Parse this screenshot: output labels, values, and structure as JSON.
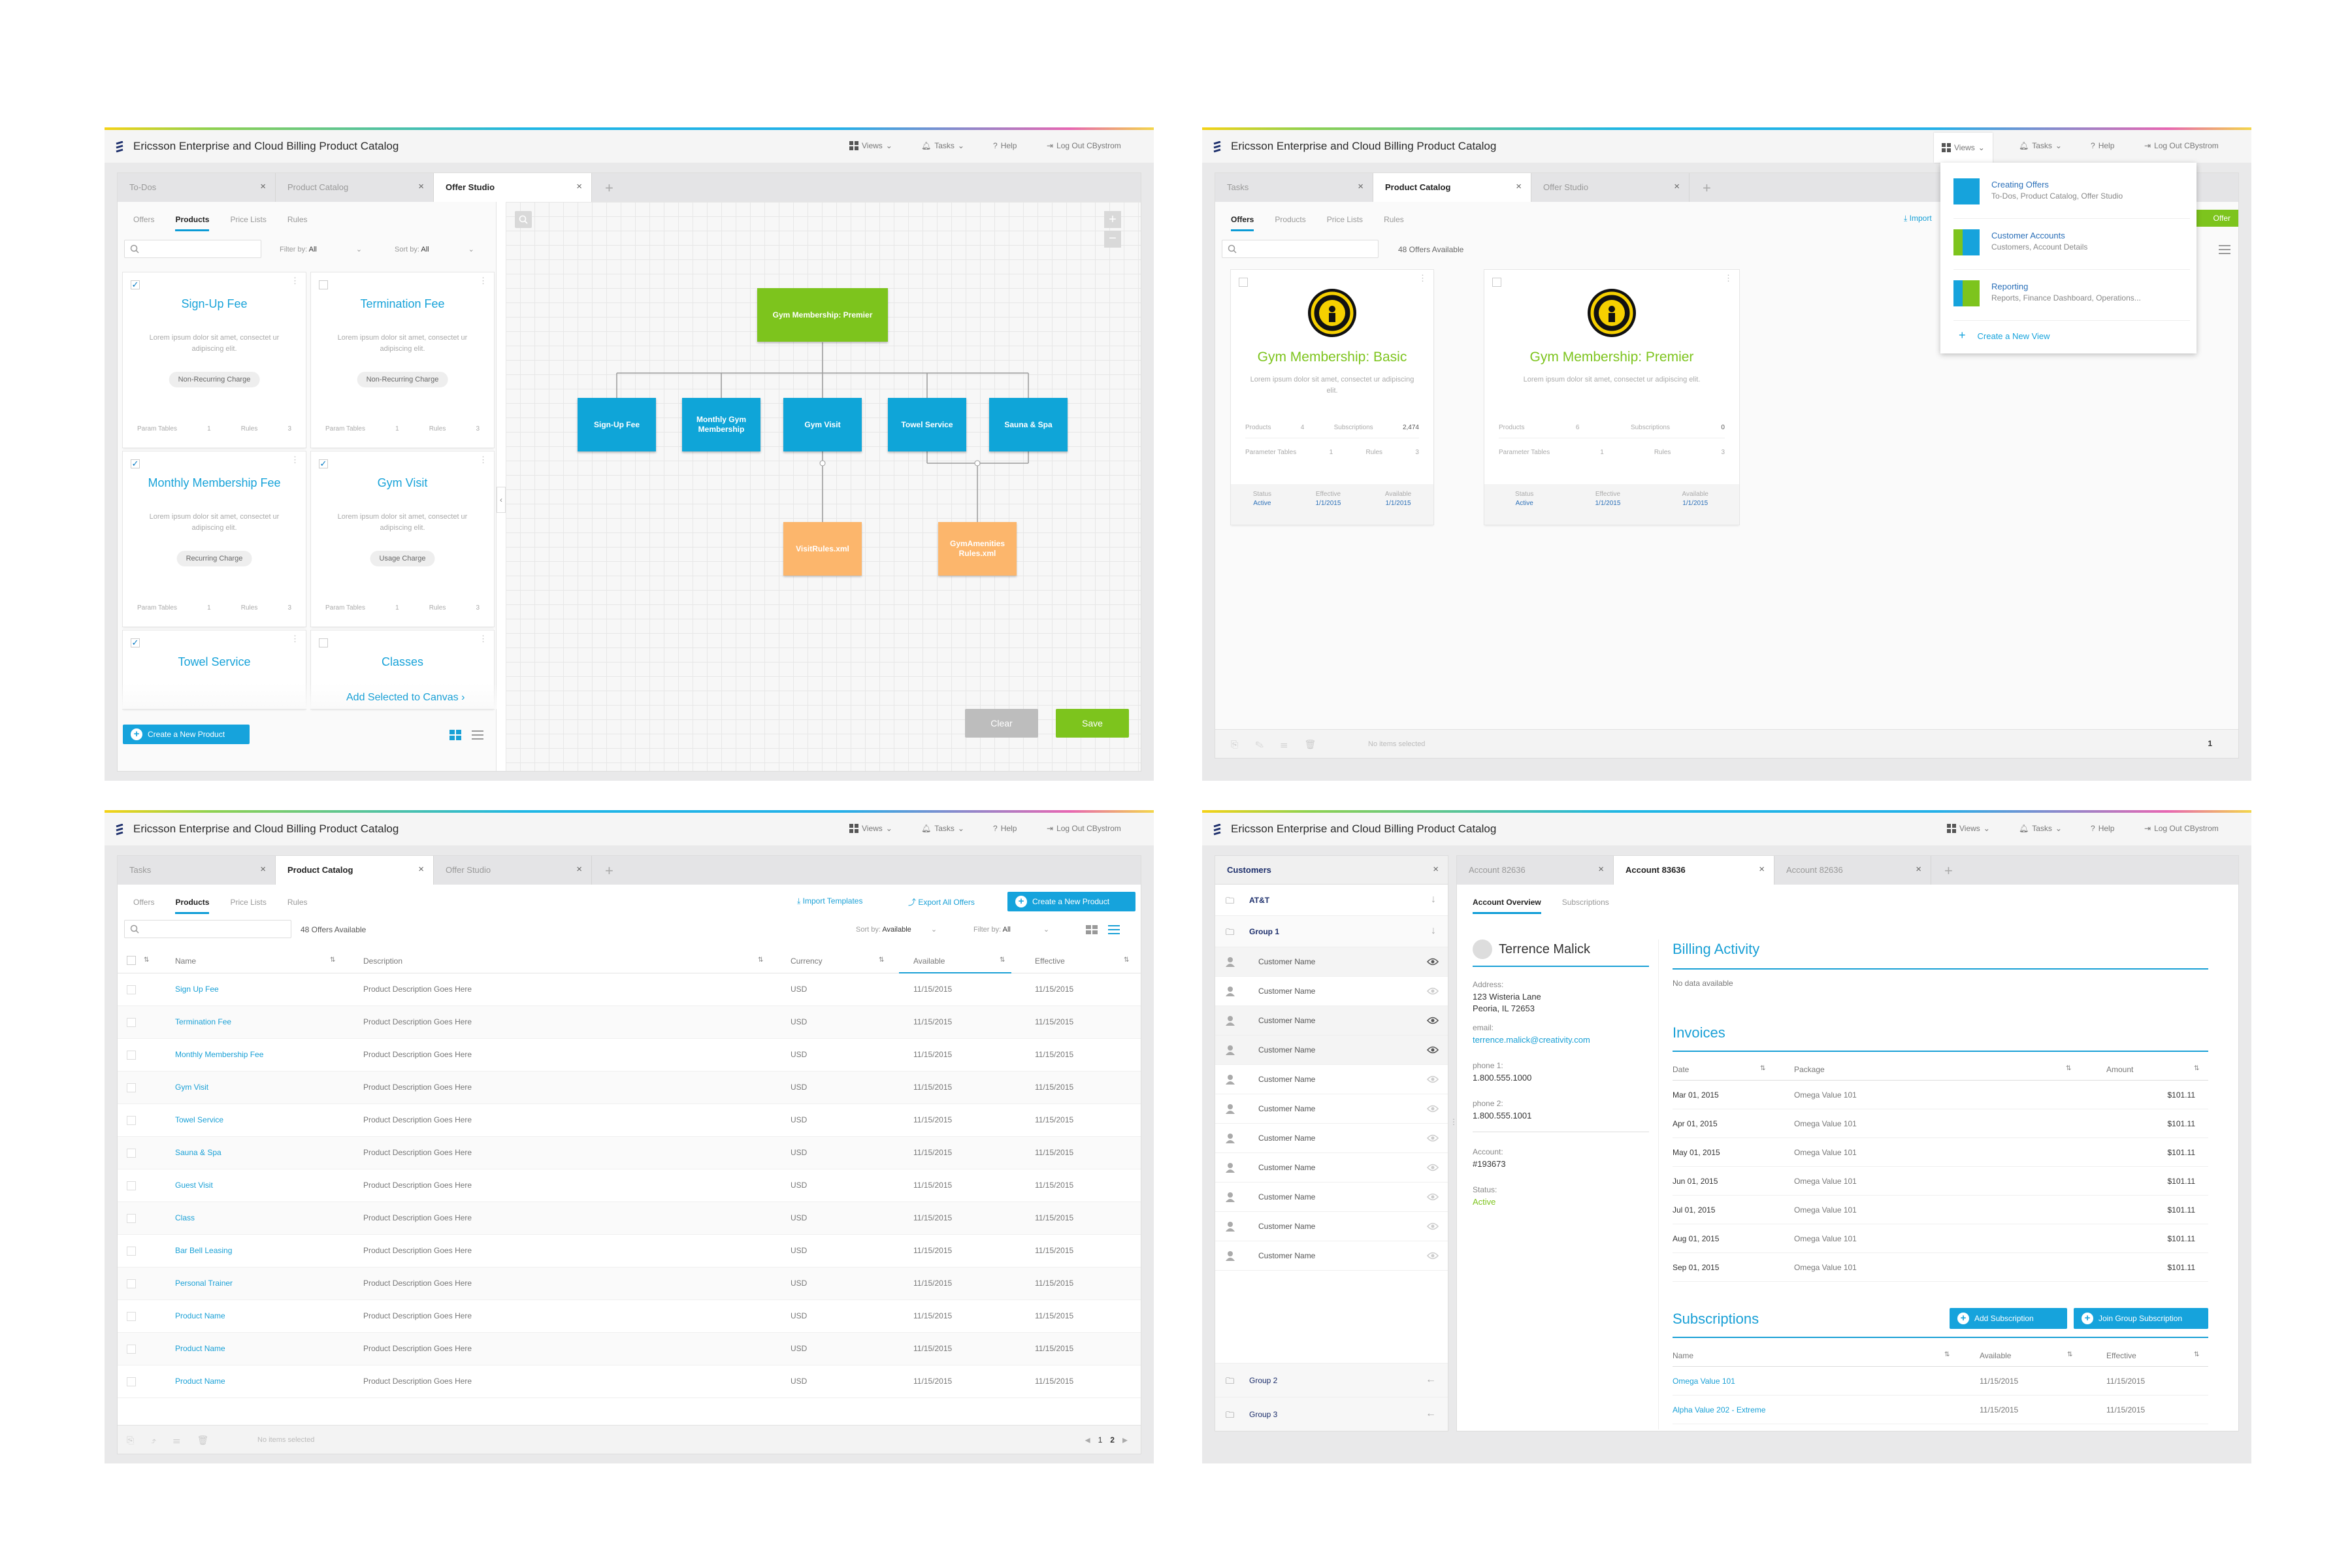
{
  "app": {
    "title": "Ericsson Enterprise and Cloud Billing Product Catalog",
    "views": "Views",
    "tasks": "Tasks",
    "help": "Help",
    "logout": "Log Out CBystrom"
  },
  "colors": {
    "accent": "#16a3dc",
    "green": "#7dc41d",
    "orange": "#fcb66c"
  },
  "w1": {
    "tabs": [
      {
        "label": "To-Dos"
      },
      {
        "label": "Product Catalog"
      },
      {
        "label": "Offer Studio"
      }
    ],
    "subnav": [
      "Offers",
      "Products",
      "Price Lists",
      "Rules"
    ],
    "filter_label": "Filter by:",
    "filter_value": "All",
    "sort_label": "Sort by:",
    "sort_value": "All",
    "cards": [
      {
        "title": "Sign-Up Fee",
        "checked": "✓",
        "desc": "Lorem ipsum dolor sit amet, consectet ur adipiscing elit.",
        "pill": "Non-Recurring Charge",
        "pt_label": "Param Tables",
        "pt": "1",
        "rules_label": "Rules",
        "rules": "3"
      },
      {
        "title": "Termination Fee",
        "checked": "",
        "desc": "Lorem ipsum dolor sit amet, consectet ur adipiscing elit.",
        "pill": "Non-Recurring Charge",
        "pt_label": "Param Tables",
        "pt": "1",
        "rules_label": "Rules",
        "rules": "3"
      },
      {
        "title": "Monthly Membership Fee",
        "checked": "✓",
        "desc": "Lorem ipsum dolor sit amet, consectet ur adipiscing elit.",
        "pill": "Recurring Charge",
        "pt_label": "Param Tables",
        "pt": "1",
        "rules_label": "Rules",
        "rules": "3"
      },
      {
        "title": "Gym Visit",
        "checked": "✓",
        "desc": "Lorem ipsum dolor sit amet, consectet ur adipiscing elit.",
        "pill": "Usage Charge",
        "pt_label": "Param Tables",
        "pt": "1",
        "rules_label": "Rules",
        "rules": "3"
      },
      {
        "title": "Towel Service",
        "checked": "✓"
      },
      {
        "title": "Classes",
        "checked": ""
      }
    ],
    "add_selected": "Add Selected to Canvas",
    "create_product": "Create a New Product",
    "root_node": "Gym Membership: Premier",
    "child_nodes": [
      "Sign-Up Fee",
      "Monthly Gym Membership",
      "Gym Visit",
      "Towel Service",
      "Sauna & Spa"
    ],
    "rule_nodes": [
      "VisitRules.xml",
      "GymAmenities Rules.xml"
    ],
    "clear": "Clear",
    "save": "Save"
  },
  "w2": {
    "tabs": [
      {
        "label": "Tasks"
      },
      {
        "label": "Product Catalog"
      },
      {
        "label": "Offer Studio"
      }
    ],
    "subnav": [
      "Offers",
      "Products",
      "Price Lists",
      "Rules"
    ],
    "count": "48 Offers Available",
    "import": "Import",
    "new_offer": "Offer",
    "offers": [
      {
        "title": "Gym Membership: Basic",
        "desc": "Lorem ipsum dolor sit amet, consectet ur adipiscing elit.",
        "products_label": "Products",
        "products": "4",
        "subs_label": "Subscriptions",
        "subs": "2,474",
        "pt_label": "Parameter Tables",
        "pt": "1",
        "rules_label": "Rules",
        "rules": "3",
        "status_label": "Status",
        "status": "Active",
        "eff_label": "Effective",
        "eff": "1/1/2015",
        "avail_label": "Available",
        "avail": "1/1/2015"
      },
      {
        "title": "Gym Membership: Premier",
        "desc": "Lorem ipsum dolor sit amet, consectet ur adipiscing elit.",
        "products_label": "Products",
        "products": "6",
        "subs_label": "Subscriptions",
        "subs": "0",
        "pt_label": "Parameter Tables",
        "pt": "1",
        "rules_label": "Rules",
        "rules": "3",
        "status_label": "Status",
        "status": "Active",
        "eff_label": "Effective",
        "eff": "1/1/2015",
        "avail_label": "Available",
        "avail": "1/1/2015"
      }
    ],
    "views_menu": [
      {
        "title": "Creating Offers",
        "sub": "To-Dos, Product Catalog, Offer Studio"
      },
      {
        "title": "Customer Accounts",
        "sub": "Customers, Account Details"
      },
      {
        "title": "Reporting",
        "sub": "Reports, Finance Dashboard, Operations..."
      }
    ],
    "create_view": "Create a New View",
    "no_items": "No items selected",
    "page": "1"
  },
  "w3": {
    "tabs": [
      {
        "label": "Tasks"
      },
      {
        "label": "Product Catalog"
      },
      {
        "label": "Offer Studio"
      }
    ],
    "subnav": [
      "Offers",
      "Products",
      "Price Lists",
      "Rules"
    ],
    "import_templates": "Import Templates",
    "export_offers": "Export All Offers",
    "create_product": "Create a New Product",
    "count": "48 Offers Available",
    "sort_label": "Sort by:",
    "sort_value": "Available",
    "filter_label": "Filter by:",
    "filter_value": "All",
    "columns": [
      "Name",
      "Description",
      "Currency",
      "Available",
      "Effective"
    ],
    "rows": [
      {
        "name": "Sign Up Fee",
        "desc": "Product Description Goes Here",
        "cur": "USD",
        "avail": "11/15/2015",
        "eff": "11/15/2015"
      },
      {
        "name": "Termination Fee",
        "desc": "Product Description Goes Here",
        "cur": "USD",
        "avail": "11/15/2015",
        "eff": "11/15/2015"
      },
      {
        "name": "Monthly Membership Fee",
        "desc": "Product Description Goes Here",
        "cur": "USD",
        "avail": "11/15/2015",
        "eff": "11/15/2015"
      },
      {
        "name": "Gym Visit",
        "desc": "Product Description Goes Here",
        "cur": "USD",
        "avail": "11/15/2015",
        "eff": "11/15/2015"
      },
      {
        "name": "Towel Service",
        "desc": "Product Description Goes Here",
        "cur": "USD",
        "avail": "11/15/2015",
        "eff": "11/15/2015"
      },
      {
        "name": "Sauna & Spa",
        "desc": "Product Description Goes Here",
        "cur": "USD",
        "avail": "11/15/2015",
        "eff": "11/15/2015"
      },
      {
        "name": "Guest Visit",
        "desc": "Product Description Goes Here",
        "cur": "USD",
        "avail": "11/15/2015",
        "eff": "11/15/2015"
      },
      {
        "name": "Class",
        "desc": "Product Description Goes Here",
        "cur": "USD",
        "avail": "11/15/2015",
        "eff": "11/15/2015"
      },
      {
        "name": "Bar Bell Leasing",
        "desc": "Product Description Goes Here",
        "cur": "USD",
        "avail": "11/15/2015",
        "eff": "11/15/2015"
      },
      {
        "name": "Personal Trainer",
        "desc": "Product Description Goes Here",
        "cur": "USD",
        "avail": "11/15/2015",
        "eff": "11/15/2015"
      },
      {
        "name": "Product Name",
        "desc": "Product Description Goes Here",
        "cur": "USD",
        "avail": "11/15/2015",
        "eff": "11/15/2015"
      },
      {
        "name": "Product Name",
        "desc": "Product Description Goes Here",
        "cur": "USD",
        "avail": "11/15/2015",
        "eff": "11/15/2015"
      },
      {
        "name": "Product Name",
        "desc": "Product Description Goes Here",
        "cur": "USD",
        "avail": "11/15/2015",
        "eff": "11/15/2015"
      }
    ],
    "no_items": "No items selected",
    "page1": "1",
    "page2": "2"
  },
  "w4": {
    "customers_title": "Customers",
    "tabs": [
      {
        "label": "Account 82636"
      },
      {
        "label": "Account 83636"
      },
      {
        "label": "Account 82636"
      }
    ],
    "org": "AT&T",
    "group1": "Group 1",
    "customer_rows": [
      "Customer Name",
      "Customer Name",
      "Customer Name",
      "Customer Name",
      "Customer Name",
      "Customer Name",
      "Customer Name",
      "Customer Name",
      "Customer Name",
      "Customer Name",
      "Customer Name"
    ],
    "group2": "Group 2",
    "group3": "Group 3",
    "subnav": [
      "Account Overview",
      "Subscriptions"
    ],
    "name": "Terrence Malick",
    "address_label": "Address:",
    "address1": "123 Wisteria Lane",
    "address2": "Peoria, IL 72653",
    "email_label": "email:",
    "email": "terrence.malick@creativity.com",
    "phone1_label": "phone 1:",
    "phone1": "1.800.555.1000",
    "phone2_label": "phone 2:",
    "phone2": "1.800.555.1001",
    "account_label": "Account:",
    "account": "#193673",
    "status_label": "Status:",
    "status": "Active",
    "billing_title": "Billing Activity",
    "no_data": "No data available",
    "invoices_title": "Invoices",
    "inv_cols": [
      "Date",
      "Package",
      "Amount"
    ],
    "invoices": [
      {
        "date": "Mar 01, 2015",
        "pkg": "Omega Value 101",
        "amt": "$101.11"
      },
      {
        "date": "Apr 01, 2015",
        "pkg": "Omega Value 101",
        "amt": "$101.11"
      },
      {
        "date": "May 01, 2015",
        "pkg": "Omega Value 101",
        "amt": "$101.11"
      },
      {
        "date": "Jun 01, 2015",
        "pkg": "Omega Value 101",
        "amt": "$101.11"
      },
      {
        "date": "Jul 01, 2015",
        "pkg": "Omega Value 101",
        "amt": "$101.11"
      },
      {
        "date": "Aug 01, 2015",
        "pkg": "Omega Value 101",
        "amt": "$101.11"
      },
      {
        "date": "Sep 01, 2015",
        "pkg": "Omega Value 101",
        "amt": "$101.11"
      }
    ],
    "subs_title": "Subscriptions",
    "add_sub": "Add Subscription",
    "join_sub": "Join Group Subscription",
    "sub_cols": [
      "Name",
      "Available",
      "Effective"
    ],
    "subs": [
      {
        "name": "Omega Value 101",
        "avail": "11/15/2015",
        "eff": "11/15/2015"
      },
      {
        "name": "Alpha Value 202 - Extreme",
        "avail": "11/15/2015",
        "eff": "11/15/2015"
      }
    ]
  }
}
